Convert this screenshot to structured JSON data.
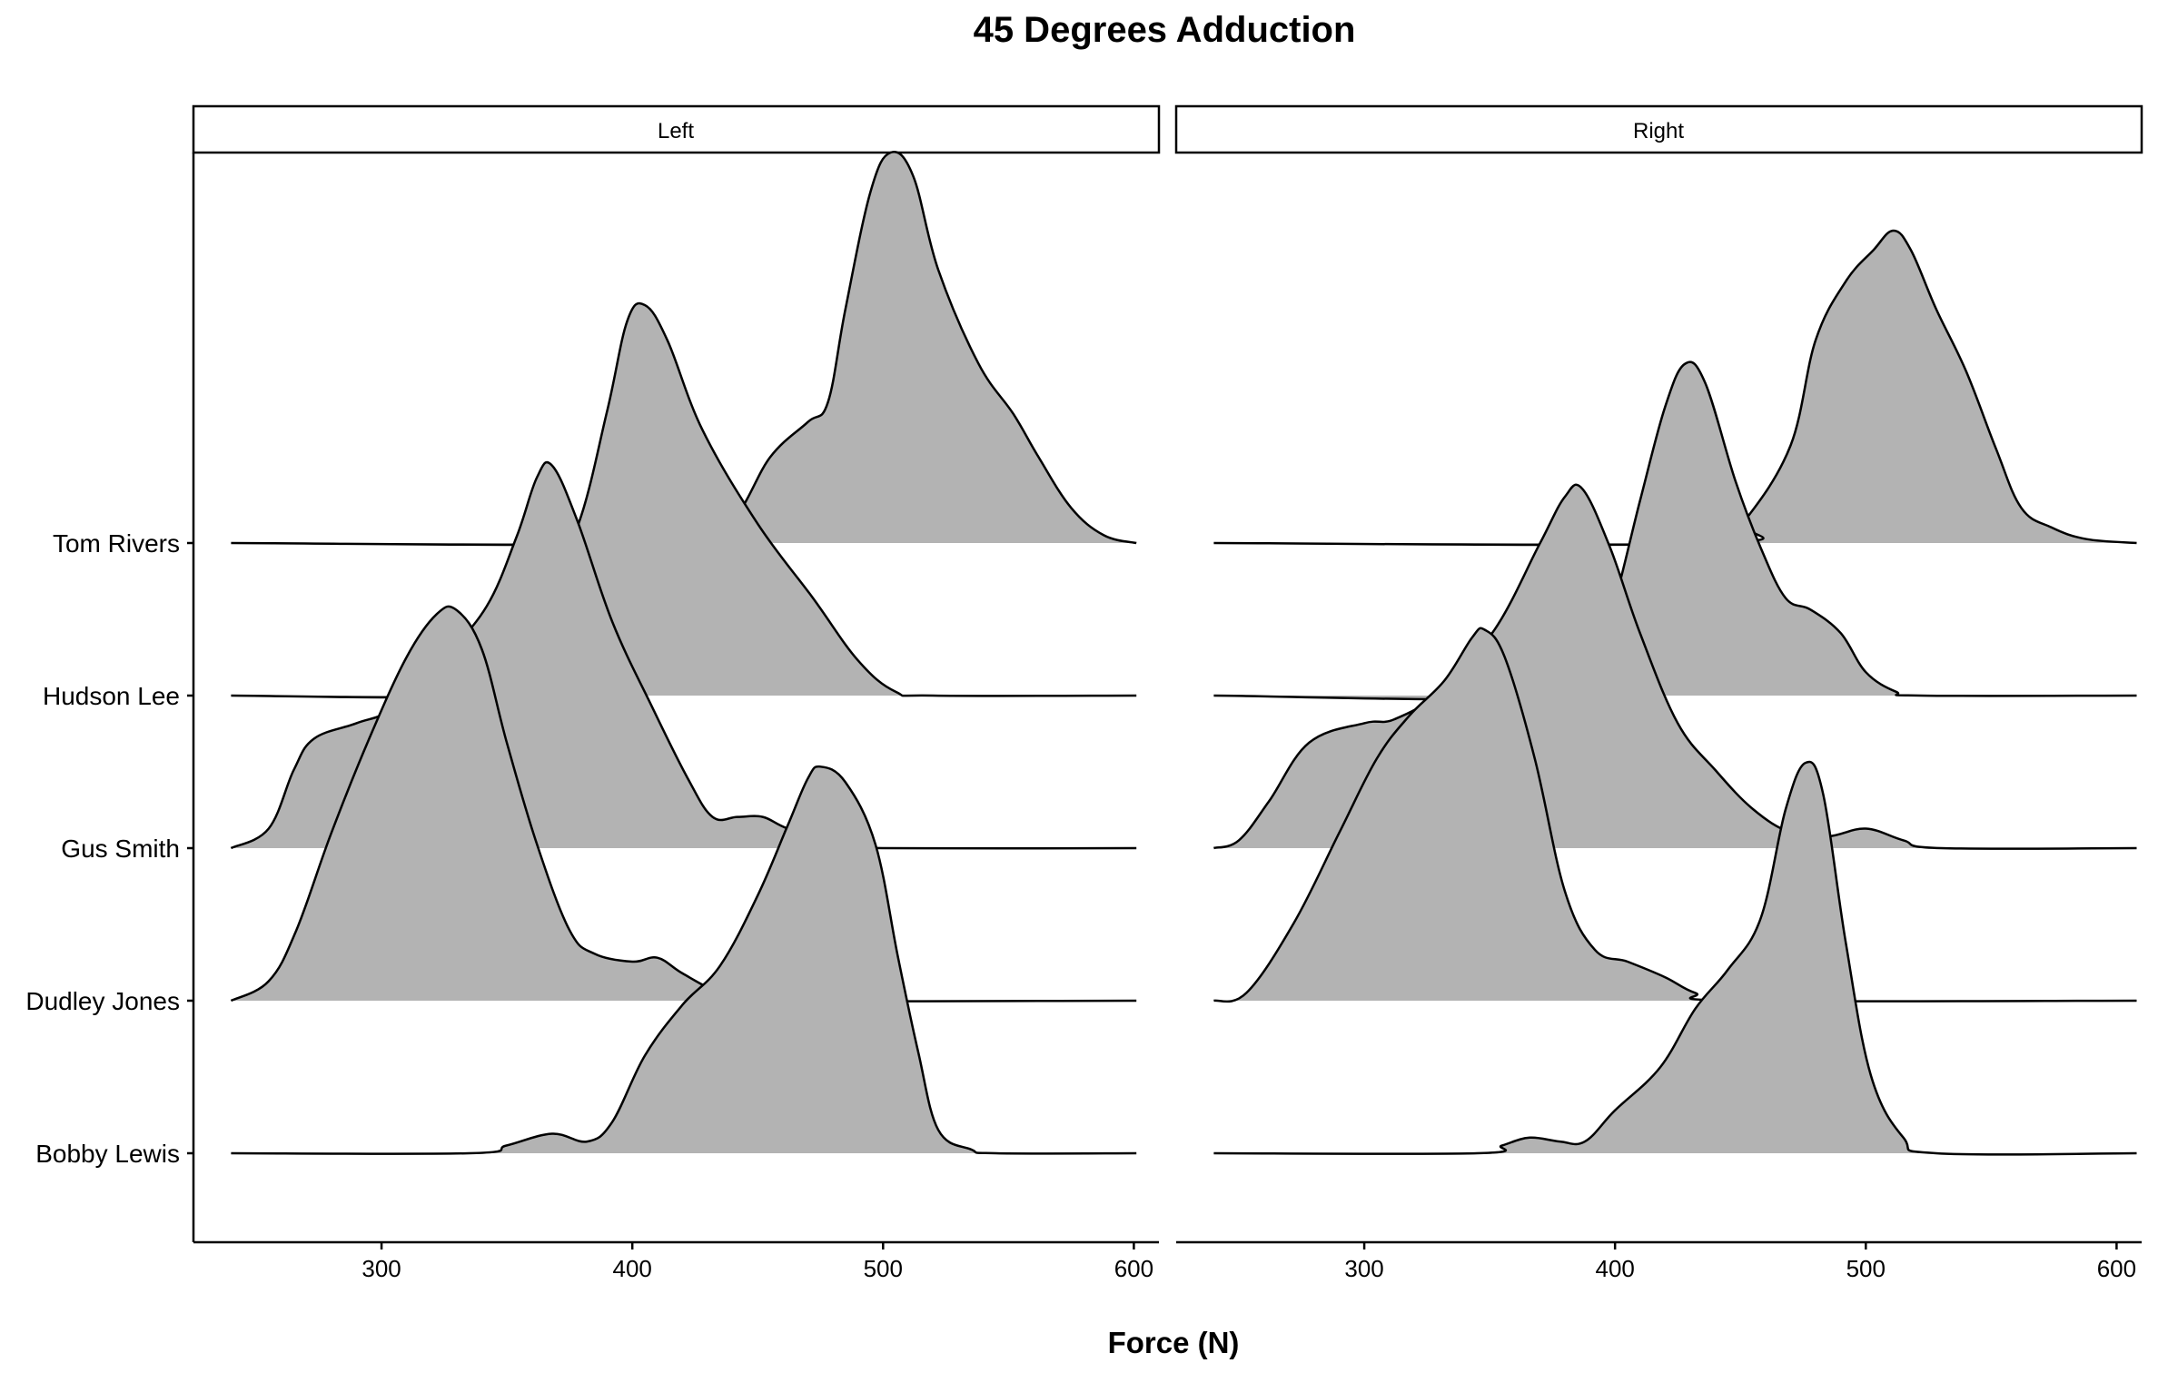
{
  "chart_data": {
    "type": "ridgeline",
    "title": "45 Degrees Adduction",
    "xlabel": "Force (N)",
    "ylabel": "",
    "facets": [
      "Left",
      "Right"
    ],
    "ylim_rows": [
      "Bobby Lewis",
      "Dudley Jones",
      "Gus Smith",
      "Hudson Lee",
      "Tom Rivers"
    ],
    "xlim": [
      225,
      610
    ],
    "xticks": [
      300,
      400,
      500,
      600
    ],
    "fill_color": "#b3b3b3",
    "line_color": "#000000",
    "grid": false,
    "series": [
      {
        "facet": "Left",
        "row": "Tom Rivers",
        "points": [
          [
            240,
            0
          ],
          [
            420,
            0
          ],
          [
            440,
            0.06
          ],
          [
            455,
            0.22
          ],
          [
            470,
            0.31
          ],
          [
            478,
            0.36
          ],
          [
            485,
            0.6
          ],
          [
            495,
            0.9
          ],
          [
            503,
            1.0
          ],
          [
            512,
            0.94
          ],
          [
            522,
            0.7
          ],
          [
            538,
            0.46
          ],
          [
            552,
            0.33
          ],
          [
            562,
            0.22
          ],
          [
            575,
            0.09
          ],
          [
            588,
            0.02
          ],
          [
            601,
            0
          ]
        ]
      },
      {
        "facet": "Left",
        "row": "Hudson Lee",
        "points": [
          [
            240,
            0
          ],
          [
            336,
            0
          ],
          [
            348,
            0.06
          ],
          [
            362,
            0.25
          ],
          [
            378,
            0.43
          ],
          [
            390,
            0.73
          ],
          [
            398,
            0.96
          ],
          [
            405,
            1.0
          ],
          [
            414,
            0.91
          ],
          [
            428,
            0.68
          ],
          [
            450,
            0.44
          ],
          [
            472,
            0.25
          ],
          [
            490,
            0.09
          ],
          [
            505,
            0.01
          ],
          [
            520,
            0
          ],
          [
            601,
            0
          ]
        ]
      },
      {
        "facet": "Left",
        "row": "Gus Smith",
        "points": [
          [
            240,
            0
          ],
          [
            255,
            0.05
          ],
          [
            265,
            0.2
          ],
          [
            273,
            0.28
          ],
          [
            290,
            0.32
          ],
          [
            305,
            0.36
          ],
          [
            325,
            0.49
          ],
          [
            342,
            0.62
          ],
          [
            354,
            0.8
          ],
          [
            362,
            0.95
          ],
          [
            368,
            0.98
          ],
          [
            378,
            0.84
          ],
          [
            392,
            0.58
          ],
          [
            408,
            0.36
          ],
          [
            422,
            0.18
          ],
          [
            432,
            0.08
          ],
          [
            442,
            0.08
          ],
          [
            452,
            0.08
          ],
          [
            462,
            0.05
          ],
          [
            482,
            0.01
          ],
          [
            500,
            0
          ],
          [
            601,
            0
          ]
        ]
      },
      {
        "facet": "Left",
        "row": "Dudley Jones",
        "points": [
          [
            240,
            0
          ],
          [
            255,
            0.05
          ],
          [
            266,
            0.18
          ],
          [
            280,
            0.43
          ],
          [
            295,
            0.67
          ],
          [
            310,
            0.88
          ],
          [
            322,
            0.99
          ],
          [
            330,
            1.0
          ],
          [
            340,
            0.9
          ],
          [
            350,
            0.66
          ],
          [
            362,
            0.4
          ],
          [
            375,
            0.18
          ],
          [
            385,
            0.12
          ],
          [
            400,
            0.1
          ],
          [
            410,
            0.11
          ],
          [
            420,
            0.07
          ],
          [
            435,
            0.02
          ],
          [
            450,
            0
          ],
          [
            601,
            0
          ]
        ]
      },
      {
        "facet": "Left",
        "row": "Bobby Lewis",
        "points": [
          [
            240,
            0
          ],
          [
            335,
            0
          ],
          [
            350,
            0.02
          ],
          [
            368,
            0.05
          ],
          [
            382,
            0.03
          ],
          [
            392,
            0.08
          ],
          [
            405,
            0.25
          ],
          [
            420,
            0.38
          ],
          [
            435,
            0.48
          ],
          [
            450,
            0.66
          ],
          [
            462,
            0.84
          ],
          [
            470,
            0.96
          ],
          [
            475,
            0.99
          ],
          [
            485,
            0.95
          ],
          [
            497,
            0.79
          ],
          [
            506,
            0.5
          ],
          [
            514,
            0.26
          ],
          [
            522,
            0.06
          ],
          [
            535,
            0.01
          ],
          [
            545,
            0
          ],
          [
            601,
            0
          ]
        ]
      },
      {
        "facet": "Right",
        "row": "Tom Rivers",
        "points": [
          [
            240,
            0
          ],
          [
            440,
            0
          ],
          [
            452,
            0.06
          ],
          [
            470,
            0.25
          ],
          [
            480,
            0.52
          ],
          [
            492,
            0.67
          ],
          [
            503,
            0.75
          ],
          [
            511,
            0.8
          ],
          [
            518,
            0.75
          ],
          [
            528,
            0.6
          ],
          [
            540,
            0.44
          ],
          [
            552,
            0.24
          ],
          [
            562,
            0.09
          ],
          [
            574,
            0.04
          ],
          [
            588,
            0.01
          ],
          [
            608,
            0
          ]
        ]
      },
      {
        "facet": "Right",
        "row": "Hudson Lee",
        "points": [
          [
            240,
            0
          ],
          [
            378,
            0
          ],
          [
            390,
            0.12
          ],
          [
            398,
            0.2
          ],
          [
            410,
            0.5
          ],
          [
            420,
            0.74
          ],
          [
            428,
            0.85
          ],
          [
            436,
            0.8
          ],
          [
            448,
            0.55
          ],
          [
            458,
            0.38
          ],
          [
            468,
            0.25
          ],
          [
            478,
            0.22
          ],
          [
            490,
            0.16
          ],
          [
            500,
            0.06
          ],
          [
            512,
            0.01
          ],
          [
            522,
            0
          ],
          [
            608,
            0
          ]
        ]
      },
      {
        "facet": "Right",
        "row": "Gus Smith",
        "points": [
          [
            240,
            0
          ],
          [
            250,
            0.02
          ],
          [
            262,
            0.12
          ],
          [
            278,
            0.27
          ],
          [
            300,
            0.32
          ],
          [
            312,
            0.33
          ],
          [
            330,
            0.4
          ],
          [
            352,
            0.56
          ],
          [
            370,
            0.78
          ],
          [
            380,
            0.9
          ],
          [
            387,
            0.92
          ],
          [
            398,
            0.77
          ],
          [
            410,
            0.55
          ],
          [
            425,
            0.32
          ],
          [
            440,
            0.2
          ],
          [
            455,
            0.1
          ],
          [
            470,
            0.04
          ],
          [
            485,
            0.03
          ],
          [
            500,
            0.05
          ],
          [
            515,
            0.02
          ],
          [
            530,
            0
          ],
          [
            608,
            0
          ]
        ]
      },
      {
        "facet": "Right",
        "row": "Dudley Jones",
        "points": [
          [
            240,
            0
          ],
          [
            253,
            0.02
          ],
          [
            272,
            0.2
          ],
          [
            290,
            0.43
          ],
          [
            305,
            0.62
          ],
          [
            318,
            0.73
          ],
          [
            332,
            0.82
          ],
          [
            343,
            0.93
          ],
          [
            348,
            0.95
          ],
          [
            356,
            0.88
          ],
          [
            368,
            0.62
          ],
          [
            380,
            0.28
          ],
          [
            392,
            0.13
          ],
          [
            405,
            0.1
          ],
          [
            420,
            0.06
          ],
          [
            432,
            0.02
          ],
          [
            448,
            0
          ],
          [
            608,
            0
          ]
        ]
      },
      {
        "facet": "Right",
        "row": "Bobby Lewis",
        "points": [
          [
            240,
            0
          ],
          [
            345,
            0
          ],
          [
            355,
            0.02
          ],
          [
            366,
            0.04
          ],
          [
            378,
            0.03
          ],
          [
            388,
            0.03
          ],
          [
            400,
            0.11
          ],
          [
            418,
            0.22
          ],
          [
            432,
            0.37
          ],
          [
            445,
            0.47
          ],
          [
            458,
            0.6
          ],
          [
            468,
            0.88
          ],
          [
            476,
            1.0
          ],
          [
            483,
            0.92
          ],
          [
            492,
            0.54
          ],
          [
            502,
            0.2
          ],
          [
            515,
            0.04
          ],
          [
            528,
            0
          ],
          [
            608,
            0
          ]
        ]
      }
    ]
  }
}
